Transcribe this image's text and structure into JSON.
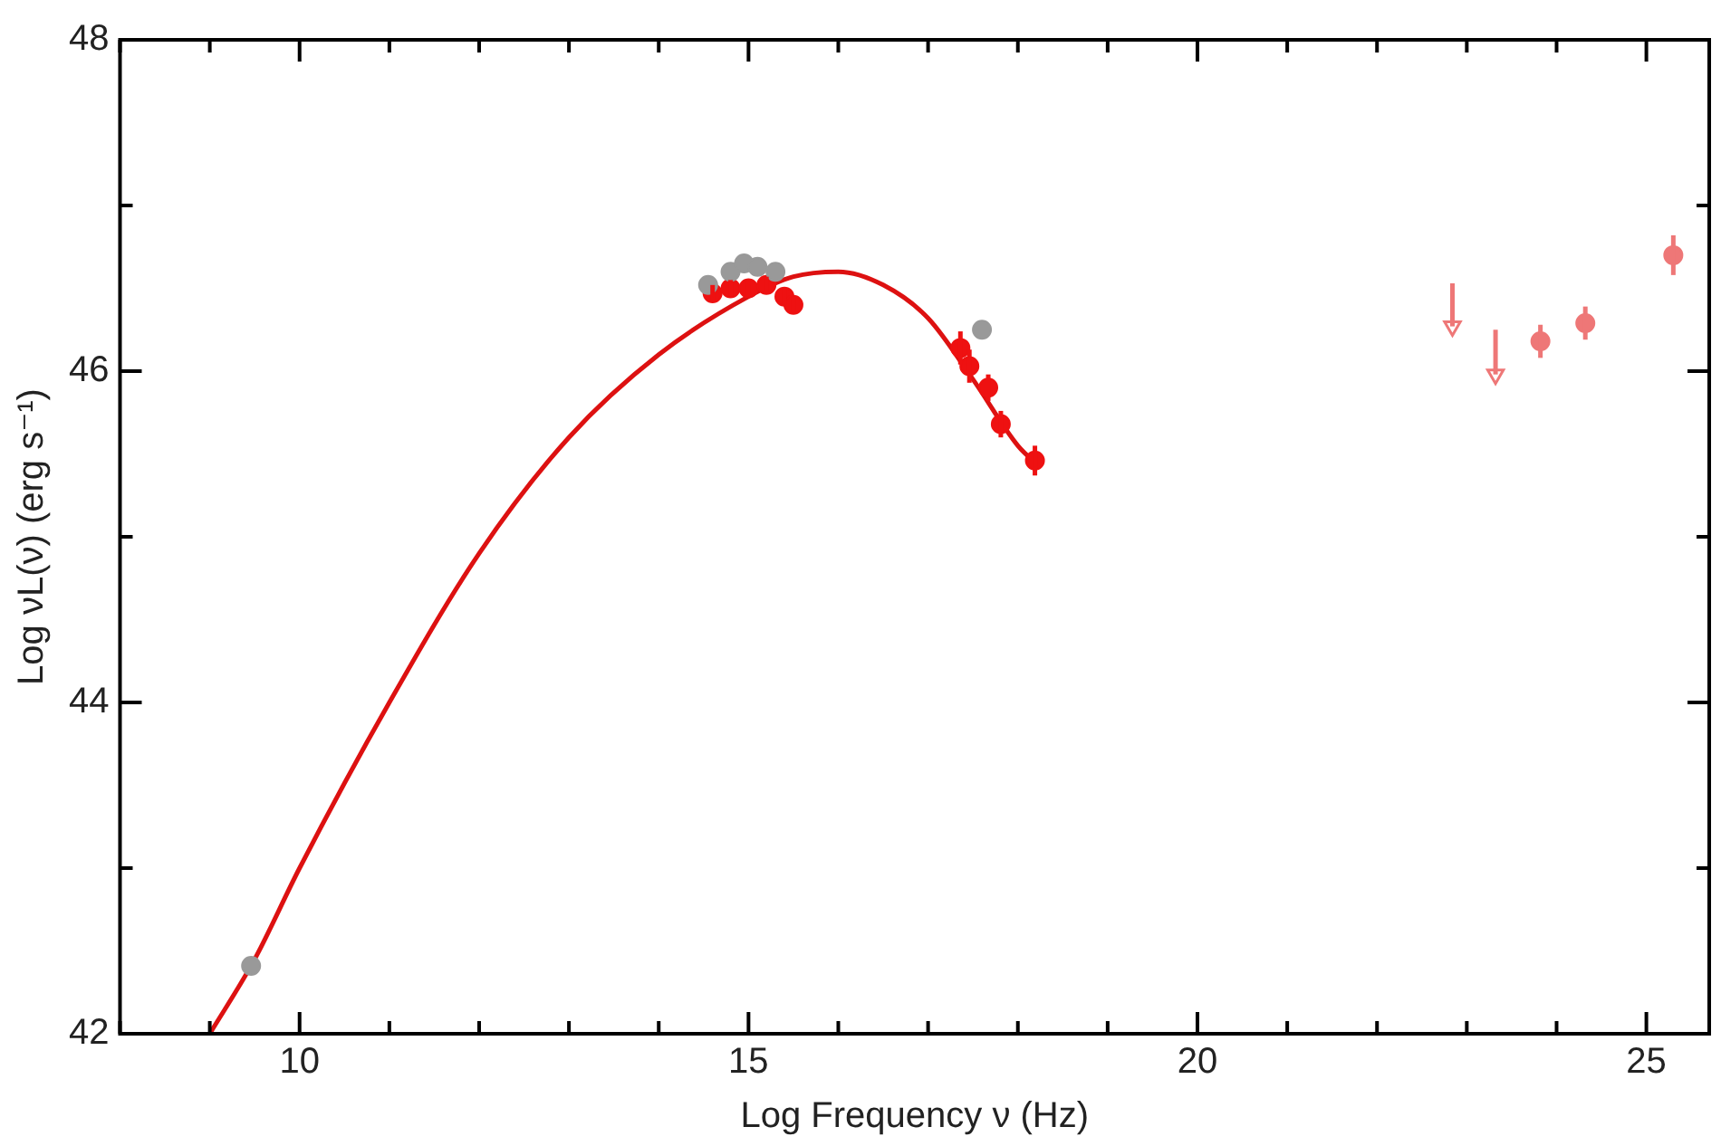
{
  "chart_data": {
    "type": "scatter",
    "xlabel": "Log Frequency ν (Hz)",
    "ylabel": "Log νL(ν) (erg s⁻¹)",
    "xlim": [
      8,
      25.7
    ],
    "xticks": [
      {
        "value": 8,
        "label": null
      },
      {
        "value": 9,
        "label": null
      },
      10,
      {
        "value": 11,
        "label": null
      },
      {
        "value": 12,
        "label": null
      },
      {
        "value": 13,
        "label": null
      },
      {
        "value": 14,
        "label": null
      },
      15,
      {
        "value": 16,
        "label": null
      },
      {
        "value": 17,
        "label": null
      },
      {
        "value": 18,
        "label": null
      },
      {
        "value": 19,
        "label": null
      },
      20,
      {
        "value": 21,
        "label": null
      },
      {
        "value": 22,
        "label": null
      },
      {
        "value": 23,
        "label": null
      },
      {
        "value": 24,
        "label": null
      },
      25
    ],
    "ylim": [
      42,
      48
    ],
    "yticks": [
      42,
      {
        "value": 43,
        "label": null
      },
      44,
      {
        "value": 45,
        "label": null
      },
      46,
      {
        "value": 47,
        "label": null
      },
      48
    ],
    "grid": false,
    "legend": false,
    "series": [
      {
        "type": "line",
        "color": "#dd1111",
        "marker": "none",
        "line_style": "solid",
        "x": [
          9,
          9.5,
          10,
          11,
          12,
          13,
          14,
          15,
          15.5,
          16,
          16.5,
          17,
          17.5,
          18,
          18.25
        ],
        "values": [
          42,
          42.45,
          43,
          44,
          44.9,
          45.6,
          46.1,
          46.45,
          46.57,
          46.6,
          46.52,
          46.32,
          45.95,
          45.55,
          45.42
        ]
      },
      {
        "type": "scatter",
        "color": "#999999",
        "marker": "circle",
        "x": [
          9.46,
          14.55,
          14.8,
          14.95,
          15.1,
          15.3,
          17.6
        ],
        "values": [
          42.41,
          46.52,
          46.6,
          46.65,
          46.63,
          46.6,
          46.25
        ]
      },
      {
        "type": "scatter",
        "color": "#ee1111",
        "marker": "circle",
        "x": [
          14.6,
          14.8,
          15,
          15.2,
          15.4,
          15.5,
          17.36,
          17.46,
          17.67,
          17.81,
          18.19
        ],
        "values": [
          46.47,
          46.5,
          46.5,
          46.52,
          46.45,
          46.4,
          46.14,
          46.03,
          45.9,
          45.68,
          45.46
        ],
        "errors": [
          0.05,
          0.05,
          0.05,
          0.05,
          0.05,
          0.05,
          0.1,
          0.1,
          0.08,
          0.08,
          0.09
        ]
      },
      {
        "color": "#ee7777",
        "marker": "circle",
        "x": [
          23.82,
          24.32,
          25.3
        ],
        "values": [
          46.18,
          46.29,
          46.7
        ],
        "errors": [
          0.1,
          0.1,
          0.12
        ]
      },
      {
        "color": "#ee7777",
        "marker": "triangle",
        "x": [
          22.84,
          23.32
        ],
        "values": [
          46.27,
          45.98
        ],
        "errors": [
          [
            46.27,
            46.53
          ],
          [
            45.98,
            46.25
          ]
        ]
      }
    ]
  }
}
